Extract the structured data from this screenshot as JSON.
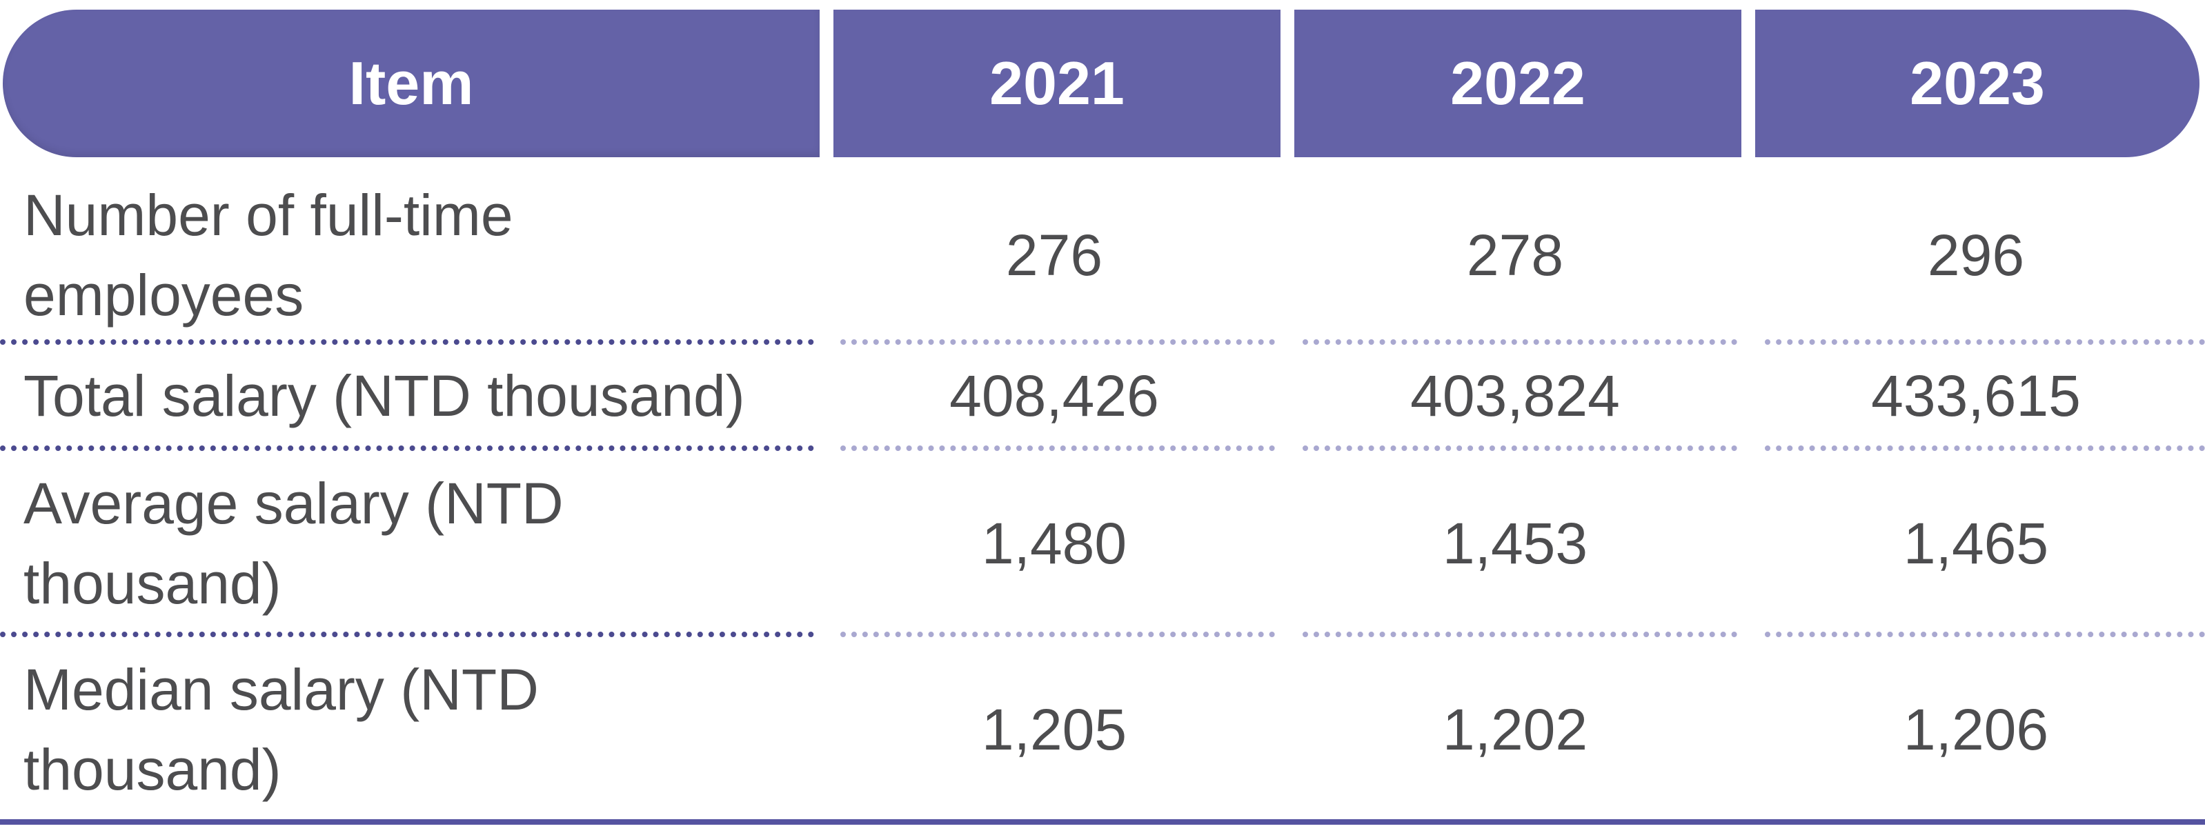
{
  "header": {
    "item": "Item",
    "years": [
      "2021",
      "2022",
      "2023"
    ]
  },
  "rows": [
    {
      "label": "Number of full-time employees",
      "values": [
        "276",
        "278",
        "296"
      ]
    },
    {
      "label": "Total salary (NTD thousand)",
      "values": [
        "408,426",
        "403,824",
        "433,615"
      ]
    },
    {
      "label": "Average salary (NTD thousand)",
      "values": [
        "1,480",
        "1,453",
        "1,465"
      ]
    },
    {
      "label": "Median salary (NTD thousand)",
      "values": [
        "1,205",
        "1,202",
        "1,206"
      ]
    }
  ],
  "colors": {
    "header_bg": "#6462a7",
    "header_text": "#ffffff",
    "body_text": "#4d4d4f",
    "separator_dark": "#4b4a8f",
    "separator_light": "#a9a8d0"
  }
}
